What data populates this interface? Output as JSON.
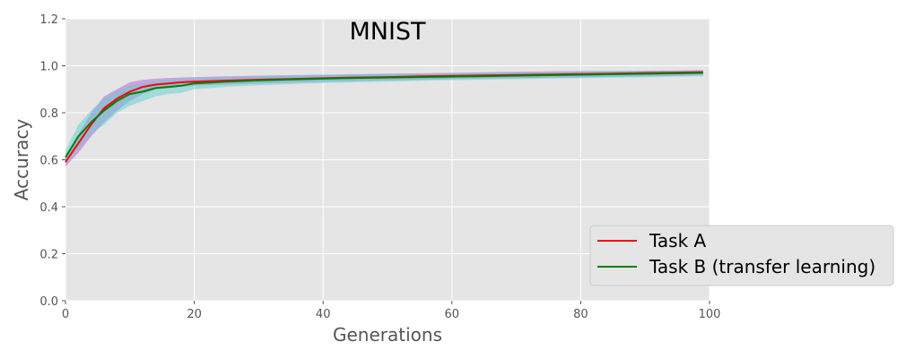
{
  "chart_data": {
    "type": "line",
    "title": "MNIST",
    "xlabel": "Generations",
    "ylabel": "Accuracy",
    "xlim": [
      0,
      100
    ],
    "ylim": [
      0.0,
      1.2
    ],
    "xticks": [
      0,
      20,
      40,
      60,
      80,
      100
    ],
    "xtick_labels": [
      "0",
      "20",
      "40",
      "60",
      "80",
      "100"
    ],
    "yticks": [
      0.0,
      0.2,
      0.4,
      0.6,
      0.8,
      1.0,
      1.2
    ],
    "ytick_labels": [
      "0.0",
      "0.2",
      "0.4",
      "0.6",
      "0.8",
      "1.0",
      "1.2"
    ],
    "grid": true,
    "legend_position": "lower-right, outside plot",
    "background": "#e5e5e5",
    "x": [
      0,
      2,
      4,
      6,
      8,
      10,
      12,
      14,
      16,
      18,
      20,
      25,
      30,
      35,
      40,
      45,
      50,
      55,
      60,
      65,
      70,
      75,
      80,
      85,
      90,
      95,
      99
    ],
    "series": [
      {
        "name": "Task A",
        "color": "#ff0000",
        "band_color": "#b15fd6",
        "values": [
          0.59,
          0.67,
          0.75,
          0.82,
          0.86,
          0.89,
          0.91,
          0.92,
          0.925,
          0.93,
          0.932,
          0.937,
          0.941,
          0.944,
          0.947,
          0.95,
          0.952,
          0.955,
          0.957,
          0.959,
          0.961,
          0.963,
          0.965,
          0.967,
          0.969,
          0.971,
          0.973
        ],
        "lower": [
          0.57,
          0.63,
          0.7,
          0.76,
          0.81,
          0.85,
          0.88,
          0.9,
          0.905,
          0.91,
          0.915,
          0.92,
          0.925,
          0.928,
          0.932,
          0.935,
          0.938,
          0.94,
          0.943,
          0.945,
          0.947,
          0.949,
          0.951,
          0.953,
          0.955,
          0.957,
          0.96
        ],
        "upper": [
          0.61,
          0.71,
          0.8,
          0.87,
          0.9,
          0.93,
          0.94,
          0.945,
          0.948,
          0.95,
          0.952,
          0.955,
          0.958,
          0.96,
          0.962,
          0.964,
          0.966,
          0.968,
          0.97,
          0.972,
          0.974,
          0.976,
          0.977,
          0.978,
          0.979,
          0.98,
          0.982
        ]
      },
      {
        "name": "Task B (transfer learning)",
        "color": "#008000",
        "band_color": "#5fcfd0",
        "values": [
          0.61,
          0.7,
          0.76,
          0.81,
          0.85,
          0.88,
          0.89,
          0.905,
          0.91,
          0.915,
          0.925,
          0.932,
          0.938,
          0.942,
          0.945,
          0.948,
          0.95,
          0.952,
          0.954,
          0.956,
          0.958,
          0.96,
          0.962,
          0.964,
          0.966,
          0.968,
          0.97
        ],
        "lower": [
          0.58,
          0.65,
          0.71,
          0.75,
          0.8,
          0.83,
          0.85,
          0.87,
          0.88,
          0.885,
          0.9,
          0.91,
          0.917,
          0.922,
          0.926,
          0.93,
          0.933,
          0.936,
          0.939,
          0.941,
          0.943,
          0.945,
          0.947,
          0.949,
          0.951,
          0.953,
          0.955
        ],
        "upper": [
          0.64,
          0.75,
          0.81,
          0.86,
          0.89,
          0.915,
          0.925,
          0.935,
          0.94,
          0.943,
          0.946,
          0.951,
          0.955,
          0.958,
          0.961,
          0.963,
          0.965,
          0.967,
          0.969,
          0.971,
          0.973,
          0.975,
          0.976,
          0.977,
          0.978,
          0.979,
          0.98
        ]
      }
    ]
  }
}
